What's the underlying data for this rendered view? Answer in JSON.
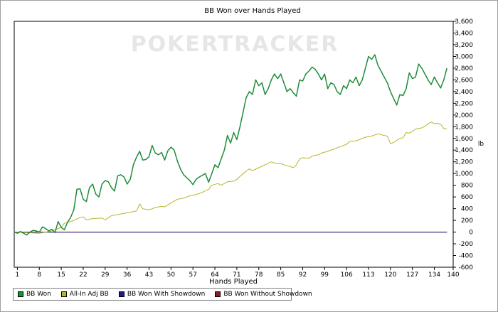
{
  "chart_data": {
    "type": "line",
    "title": "BB Won over Hands Played",
    "xlabel": "Hands Played",
    "ylabel": "",
    "y_axis_side": "right",
    "ylim": [
      -600,
      3600
    ],
    "xlim": [
      0,
      140
    ],
    "yticks": [
      3600,
      3400,
      3200,
      3000,
      2800,
      2600,
      2400,
      2200,
      2000,
      1800,
      1600,
      1400,
      1200,
      1000,
      800,
      600,
      400,
      200,
      0,
      -200,
      -400,
      -600
    ],
    "ytick_labels": [
      "3,600",
      "3,400",
      "3,200",
      "3,000",
      "2,800",
      "2,600",
      "2,400",
      "2,200",
      "2,000",
      "1,800",
      "1,600",
      "1,400",
      "1,200",
      "1,000",
      "800",
      "600",
      "400",
      "200",
      "0",
      "-200",
      "-400",
      "-600"
    ],
    "xticks": [
      1,
      8,
      15,
      22,
      29,
      36,
      43,
      50,
      57,
      64,
      71,
      78,
      85,
      92,
      99,
      106,
      113,
      120,
      127,
      134,
      140
    ],
    "grid": false,
    "legend_position": "bottom-left",
    "watermark": "POKERTRACKER",
    "series": [
      {
        "name": "BB Won",
        "color": "#1e8c3a",
        "points": [
          [
            0,
            0
          ],
          [
            1,
            -20
          ],
          [
            2,
            10
          ],
          [
            3,
            -20
          ],
          [
            4,
            -50
          ],
          [
            5,
            0
          ],
          [
            6,
            30
          ],
          [
            7,
            20
          ],
          [
            8,
            0
          ],
          [
            9,
            90
          ],
          [
            10,
            60
          ],
          [
            11,
            20
          ],
          [
            12,
            50
          ],
          [
            13,
            -10
          ],
          [
            14,
            180
          ],
          [
            15,
            80
          ],
          [
            16,
            40
          ],
          [
            17,
            170
          ],
          [
            18,
            250
          ],
          [
            19,
            380
          ],
          [
            20,
            730
          ],
          [
            21,
            740
          ],
          [
            22,
            560
          ],
          [
            23,
            520
          ],
          [
            24,
            760
          ],
          [
            25,
            820
          ],
          [
            26,
            650
          ],
          [
            27,
            600
          ],
          [
            28,
            820
          ],
          [
            29,
            880
          ],
          [
            30,
            860
          ],
          [
            31,
            760
          ],
          [
            32,
            700
          ],
          [
            33,
            960
          ],
          [
            34,
            980
          ],
          [
            35,
            940
          ],
          [
            36,
            820
          ],
          [
            37,
            900
          ],
          [
            38,
            1150
          ],
          [
            39,
            1280
          ],
          [
            40,
            1380
          ],
          [
            41,
            1230
          ],
          [
            42,
            1240
          ],
          [
            43,
            1290
          ],
          [
            44,
            1480
          ],
          [
            45,
            1350
          ],
          [
            46,
            1320
          ],
          [
            47,
            1360
          ],
          [
            48,
            1230
          ],
          [
            49,
            1390
          ],
          [
            50,
            1450
          ],
          [
            51,
            1400
          ],
          [
            52,
            1220
          ],
          [
            53,
            1080
          ],
          [
            54,
            980
          ],
          [
            55,
            930
          ],
          [
            56,
            880
          ],
          [
            57,
            810
          ],
          [
            58,
            900
          ],
          [
            59,
            940
          ],
          [
            60,
            970
          ],
          [
            61,
            1000
          ],
          [
            62,
            850
          ],
          [
            63,
            1000
          ],
          [
            64,
            1150
          ],
          [
            65,
            1100
          ],
          [
            66,
            1250
          ],
          [
            67,
            1400
          ],
          [
            68,
            1650
          ],
          [
            69,
            1520
          ],
          [
            70,
            1700
          ],
          [
            71,
            1580
          ],
          [
            72,
            1800
          ],
          [
            73,
            2050
          ],
          [
            74,
            2300
          ],
          [
            75,
            2400
          ],
          [
            76,
            2350
          ],
          [
            77,
            2600
          ],
          [
            78,
            2500
          ],
          [
            79,
            2550
          ],
          [
            80,
            2350
          ],
          [
            81,
            2450
          ],
          [
            82,
            2600
          ],
          [
            83,
            2700
          ],
          [
            84,
            2620
          ],
          [
            85,
            2700
          ],
          [
            86,
            2550
          ],
          [
            87,
            2400
          ],
          [
            88,
            2450
          ],
          [
            89,
            2380
          ],
          [
            90,
            2320
          ],
          [
            91,
            2600
          ],
          [
            92,
            2580
          ],
          [
            93,
            2700
          ],
          [
            94,
            2750
          ],
          [
            95,
            2820
          ],
          [
            96,
            2780
          ],
          [
            97,
            2700
          ],
          [
            98,
            2600
          ],
          [
            99,
            2700
          ],
          [
            100,
            2450
          ],
          [
            101,
            2550
          ],
          [
            102,
            2520
          ],
          [
            103,
            2400
          ],
          [
            104,
            2350
          ],
          [
            105,
            2500
          ],
          [
            106,
            2450
          ],
          [
            107,
            2600
          ],
          [
            108,
            2550
          ],
          [
            109,
            2650
          ],
          [
            110,
            2500
          ],
          [
            111,
            2600
          ],
          [
            112,
            2800
          ],
          [
            113,
            3000
          ],
          [
            114,
            2950
          ],
          [
            115,
            3030
          ],
          [
            116,
            2850
          ],
          [
            117,
            2750
          ],
          [
            118,
            2650
          ],
          [
            119,
            2550
          ],
          [
            120,
            2400
          ],
          [
            121,
            2280
          ],
          [
            122,
            2170
          ],
          [
            123,
            2350
          ],
          [
            124,
            2330
          ],
          [
            125,
            2450
          ],
          [
            126,
            2720
          ],
          [
            127,
            2620
          ],
          [
            128,
            2650
          ],
          [
            129,
            2870
          ],
          [
            130,
            2800
          ],
          [
            131,
            2700
          ],
          [
            132,
            2600
          ],
          [
            133,
            2520
          ],
          [
            134,
            2650
          ],
          [
            135,
            2550
          ],
          [
            136,
            2460
          ],
          [
            137,
            2600
          ],
          [
            138,
            2800
          ]
        ]
      },
      {
        "name": "All-In Adj BB",
        "color": "#b8b42a",
        "points": [
          [
            0,
            0
          ],
          [
            4,
            -10
          ],
          [
            8,
            -20
          ],
          [
            12,
            20
          ],
          [
            15,
            80
          ],
          [
            16,
            150
          ],
          [
            19,
            200
          ],
          [
            21,
            250
          ],
          [
            22,
            260
          ],
          [
            23,
            210
          ],
          [
            25,
            230
          ],
          [
            28,
            240
          ],
          [
            29,
            210
          ],
          [
            31,
            280
          ],
          [
            33,
            300
          ],
          [
            35,
            320
          ],
          [
            37,
            340
          ],
          [
            39,
            360
          ],
          [
            40,
            480
          ],
          [
            41,
            400
          ],
          [
            43,
            380
          ],
          [
            45,
            420
          ],
          [
            47,
            440
          ],
          [
            48,
            430
          ],
          [
            50,
            500
          ],
          [
            52,
            560
          ],
          [
            54,
            580
          ],
          [
            56,
            620
          ],
          [
            58,
            640
          ],
          [
            60,
            680
          ],
          [
            62,
            730
          ],
          [
            63,
            800
          ],
          [
            65,
            830
          ],
          [
            66,
            800
          ],
          [
            68,
            860
          ],
          [
            70,
            870
          ],
          [
            71,
            900
          ],
          [
            73,
            1000
          ],
          [
            75,
            1080
          ],
          [
            76,
            1050
          ],
          [
            78,
            1100
          ],
          [
            80,
            1150
          ],
          [
            82,
            1200
          ],
          [
            83,
            1180
          ],
          [
            85,
            1170
          ],
          [
            86,
            1150
          ],
          [
            88,
            1120
          ],
          [
            89,
            1100
          ],
          [
            90,
            1150
          ],
          [
            91,
            1250
          ],
          [
            92,
            1270
          ],
          [
            94,
            1260
          ],
          [
            95,
            1300
          ],
          [
            97,
            1320
          ],
          [
            98,
            1350
          ],
          [
            100,
            1380
          ],
          [
            102,
            1420
          ],
          [
            104,
            1460
          ],
          [
            106,
            1500
          ],
          [
            107,
            1550
          ],
          [
            109,
            1560
          ],
          [
            110,
            1580
          ],
          [
            112,
            1620
          ],
          [
            114,
            1640
          ],
          [
            116,
            1680
          ],
          [
            118,
            1650
          ],
          [
            119,
            1640
          ],
          [
            120,
            1510
          ],
          [
            121,
            1530
          ],
          [
            123,
            1600
          ],
          [
            124,
            1610
          ],
          [
            125,
            1700
          ],
          [
            126,
            1690
          ],
          [
            127,
            1720
          ],
          [
            128,
            1760
          ],
          [
            130,
            1780
          ],
          [
            131,
            1810
          ],
          [
            132,
            1850
          ],
          [
            133,
            1880
          ],
          [
            134,
            1850
          ],
          [
            135,
            1860
          ],
          [
            136,
            1840
          ],
          [
            137,
            1770
          ],
          [
            138,
            1760
          ]
        ]
      },
      {
        "name": "BB Won With Showdown",
        "color": "#1c1c8c",
        "points": [
          [
            0,
            0
          ],
          [
            138,
            0
          ]
        ]
      },
      {
        "name": "BB Won Without Showdown",
        "color": "#8c1c1c",
        "points": [
          [
            0,
            0
          ],
          [
            138,
            0
          ]
        ]
      }
    ]
  }
}
